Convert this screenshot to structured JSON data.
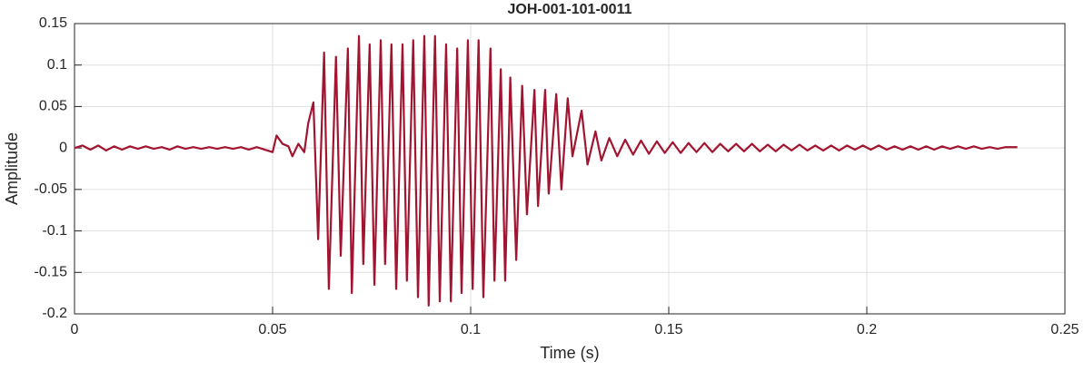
{
  "chart_data": {
    "type": "line",
    "title": "JOH-001-101-0011",
    "xlabel": "Time (s)",
    "ylabel": "Amplitude",
    "xlim": [
      0,
      0.25
    ],
    "ylim": [
      -0.2,
      0.15
    ],
    "xticks": [
      0,
      0.05,
      0.1,
      0.15,
      0.2,
      0.25
    ],
    "yticks": [
      -0.2,
      -0.15,
      -0.1,
      -0.05,
      0,
      0.05,
      0.1,
      0.15
    ],
    "grid": true,
    "series": [
      {
        "color": "#a2142f",
        "x": [
          0,
          0.002,
          0.004,
          0.006,
          0.008,
          0.01,
          0.012,
          0.014,
          0.016,
          0.018,
          0.02,
          0.022,
          0.024,
          0.026,
          0.028,
          0.03,
          0.032,
          0.034,
          0.036,
          0.038,
          0.04,
          0.042,
          0.044,
          0.046,
          0.048,
          0.05,
          0.051,
          0.0525,
          0.054,
          0.055,
          0.0565,
          0.058,
          0.059,
          0.0603,
          0.0615,
          0.063,
          0.0642,
          0.066,
          0.0672,
          0.069,
          0.07,
          0.0718,
          0.0729,
          0.0745,
          0.0757,
          0.0773,
          0.0784,
          0.08,
          0.0812,
          0.0828,
          0.0839,
          0.0855,
          0.0867,
          0.0883,
          0.0894,
          0.091,
          0.0922,
          0.0938,
          0.095,
          0.0966,
          0.0977,
          0.0993,
          0.1005,
          0.102,
          0.1032,
          0.105,
          0.106,
          0.1076,
          0.1087,
          0.11,
          0.1115,
          0.113,
          0.1142,
          0.1161,
          0.117,
          0.1188,
          0.1197,
          0.1216,
          0.1229,
          0.1245,
          0.1257,
          0.128,
          0.1295,
          0.1315,
          0.133,
          0.135,
          0.137,
          0.139,
          0.141,
          0.143,
          0.145,
          0.147,
          0.149,
          0.151,
          0.153,
          0.155,
          0.157,
          0.159,
          0.161,
          0.163,
          0.165,
          0.167,
          0.169,
          0.171,
          0.173,
          0.175,
          0.177,
          0.179,
          0.181,
          0.183,
          0.185,
          0.187,
          0.189,
          0.191,
          0.193,
          0.195,
          0.197,
          0.199,
          0.201,
          0.203,
          0.205,
          0.207,
          0.209,
          0.211,
          0.213,
          0.215,
          0.217,
          0.219,
          0.221,
          0.223,
          0.225,
          0.227,
          0.229,
          0.231,
          0.233,
          0.235,
          0.237,
          0.238
        ],
        "values": [
          0,
          0.003,
          -0.002,
          0.003,
          -0.003,
          0.002,
          -0.002,
          0.002,
          -0.001,
          0.002,
          -0.001,
          0.001,
          -0.002,
          0.002,
          -0.001,
          0.001,
          -0.001,
          0.001,
          -0.001,
          0.001,
          -0.001,
          0.001,
          -0.002,
          0.001,
          -0.002,
          -0.005,
          0.015,
          0.005,
          0.002,
          -0.01,
          0.005,
          -0.005,
          0.03,
          0.055,
          -0.11,
          0.115,
          -0.17,
          0.11,
          -0.13,
          0.12,
          -0.175,
          0.135,
          -0.14,
          0.125,
          -0.165,
          0.13,
          -0.14,
          0.125,
          -0.17,
          0.125,
          -0.16,
          0.13,
          -0.18,
          0.135,
          -0.19,
          0.135,
          -0.185,
          0.125,
          -0.185,
          0.12,
          -0.175,
          0.13,
          -0.17,
          0.13,
          -0.18,
          0.12,
          -0.16,
          0.095,
          -0.16,
          0.085,
          -0.135,
          0.075,
          -0.08,
          0.07,
          -0.07,
          0.07,
          -0.055,
          0.065,
          -0.05,
          0.06,
          -0.01,
          0.045,
          -0.02,
          0.02,
          -0.015,
          0.012,
          -0.01,
          0.01,
          -0.008,
          0.009,
          -0.007,
          0.008,
          -0.006,
          0.007,
          -0.006,
          0.006,
          -0.005,
          0.006,
          -0.005,
          0.005,
          -0.004,
          0.005,
          -0.004,
          0.005,
          -0.004,
          0.004,
          -0.004,
          0.004,
          -0.003,
          0.004,
          -0.003,
          0.003,
          -0.003,
          0.003,
          -0.003,
          0.003,
          -0.002,
          0.003,
          -0.002,
          0.003,
          -0.002,
          0.002,
          -0.002,
          0.002,
          -0.002,
          0.002,
          -0.002,
          0.002,
          -0.001,
          0.002,
          -0.001,
          0.002,
          -0.001,
          0.001,
          -0.001,
          0.001,
          0.001,
          0.001
        ]
      }
    ]
  }
}
